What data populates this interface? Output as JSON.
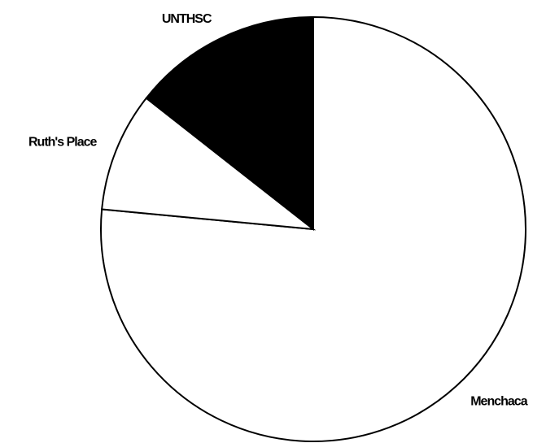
{
  "chart_data": {
    "type": "pie",
    "categories": [
      "Menchaca",
      "Ruth's Place",
      "UNTHSC"
    ],
    "values": [
      76.5,
      9.1,
      14.4
    ],
    "colors": [
      "#ffffff",
      "#ffffff",
      "#000000"
    ],
    "start_angle": "top",
    "direction": "clockwise"
  }
}
